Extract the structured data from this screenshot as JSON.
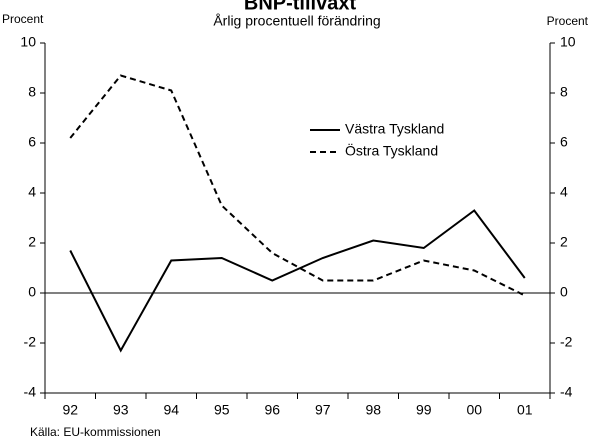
{
  "chart_data": {
    "type": "line",
    "title": "BNP-tillväxt",
    "subtitle": "Årlig procentuell förändring",
    "y_label": "Procent",
    "y2_label": "Procent",
    "source": "Källa: EU-kommissionen",
    "categories": [
      "92",
      "93",
      "94",
      "95",
      "96",
      "97",
      "98",
      "99",
      "00",
      "01"
    ],
    "series": [
      {
        "name": "Västra Tyskland",
        "color": "#000000",
        "dash": "solid",
        "values": [
          1.7,
          -2.3,
          1.3,
          1.4,
          0.5,
          1.4,
          2.1,
          1.8,
          3.3,
          0.6
        ]
      },
      {
        "name": "Östra Tyskland",
        "color": "#000000",
        "dash": "dashed",
        "values": [
          6.2,
          8.7,
          8.1,
          3.5,
          1.6,
          0.5,
          0.5,
          1.3,
          0.9,
          -0.1
        ]
      }
    ],
    "ylim": [
      -4,
      10
    ],
    "yticks": [
      -4,
      -2,
      0,
      2,
      4,
      6,
      8,
      10
    ]
  }
}
